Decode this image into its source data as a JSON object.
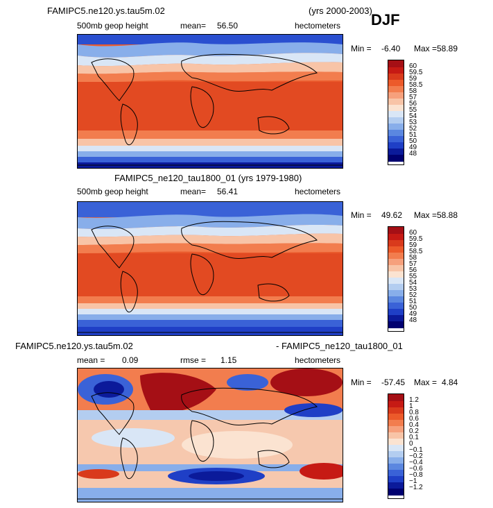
{
  "season": "DJF",
  "panels": [
    {
      "title": "FAMIPC5.ne120.ys.tau5m.02",
      "years": "(yrs 2000-2003)",
      "variable": "500mb geop height",
      "mean_label": "mean=",
      "mean_value": "56.50",
      "units": "hectometers",
      "min_label": "Min =",
      "min_value": "-6.40",
      "max_label": "Max =",
      "max_value": "58.89",
      "levels": [
        "60",
        "59.5",
        "59",
        "58.5",
        "58",
        "57",
        "56",
        "55",
        "54",
        "53",
        "52",
        "51",
        "50",
        "49",
        "48"
      ]
    },
    {
      "title": "FAMIPC5_ne120_tau1800_01 (yrs 1979-1980)",
      "variable": "500mb geop height",
      "mean_label": "mean=",
      "mean_value": "56.41",
      "units": "hectometers",
      "min_label": "Min =",
      "min_value": "49.62",
      "max_label": "Max =",
      "max_value": "58.88",
      "levels": [
        "60",
        "59.5",
        "59",
        "58.5",
        "58",
        "57",
        "56",
        "55",
        "54",
        "53",
        "52",
        "51",
        "50",
        "49",
        "48"
      ]
    },
    {
      "title_left": "FAMIPC5.ne120.ys.tau5m.02",
      "title_right": "- FAMIPC5_ne120_tau1800_01",
      "mean_label": "mean =",
      "mean_value": "0.09",
      "rmse_label": "rmse =",
      "rmse_value": "1.15",
      "units": "hectometers",
      "min_label": "Min =",
      "min_value": "-57.45",
      "max_label": "Max =",
      "max_value": "4.84",
      "levels": [
        "1.2",
        "1",
        "0.8",
        "0.6",
        "0.4",
        "0.2",
        "0.1",
        "0",
        "−0.1",
        "−0.2",
        "−0.4",
        "−0.6",
        "−0.8",
        "−1",
        "−1.2"
      ]
    }
  ],
  "colorbar_colors": [
    "#a50f15",
    "#c61a14",
    "#d93a1c",
    "#ec5a2a",
    "#f27d4e",
    "#f6a07c",
    "#f8c4a7",
    "#fbe3d1",
    "#d9e6f6",
    "#b3cdf0",
    "#88aeea",
    "#5b87e0",
    "#3a62d7",
    "#1f3fc6",
    "#0b1a9a",
    "#000070"
  ]
}
